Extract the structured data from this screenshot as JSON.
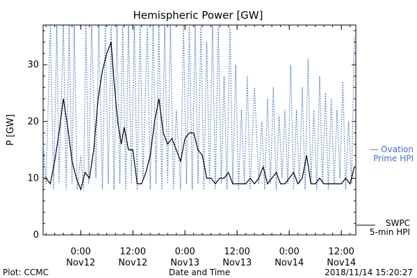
{
  "chart_data": {
    "type": "line",
    "title": "Hemispheric Power [GW]",
    "xlabel": "Date and Time",
    "ylabel": "P [GW]",
    "ylim": [
      0,
      37
    ],
    "xlim": [
      "2018-11-11T15:20",
      "2018-11-14T15:20"
    ],
    "yticks": [
      0,
      10,
      20,
      30
    ],
    "xticks": [
      {
        "time": "2018-11-12T00:00",
        "label1": "0:00",
        "label2": "Nov12"
      },
      {
        "time": "2018-11-12T12:00",
        "label1": "12:00",
        "label2": "Nov12"
      },
      {
        "time": "2018-11-13T00:00",
        "label1": "0:00",
        "label2": "Nov13"
      },
      {
        "time": "2018-11-13T12:00",
        "label1": "12:00",
        "label2": "Nov13"
      },
      {
        "time": "2018-11-14T00:00",
        "label1": "0:00",
        "label2": "Nov14"
      },
      {
        "time": "2018-11-14T12:00",
        "label1": "12:00",
        "label2": "Nov14"
      }
    ],
    "grid": false,
    "series": [
      {
        "name": "Ovation Prime HPI",
        "style": "dotted",
        "color": "#3a6fd8",
        "x": [
          "2018-11-11T15:20",
          "2018-11-11T16:00",
          "2018-11-11T17:00",
          "2018-11-11T17:45",
          "2018-11-11T18:30",
          "2018-11-11T19:00",
          "2018-11-11T20:00",
          "2018-11-11T20:40",
          "2018-11-11T21:20",
          "2018-11-11T22:00",
          "2018-11-11T22:30",
          "2018-11-11T23:10",
          "2018-11-12T00:00",
          "2018-11-12T00:40",
          "2018-11-12T01:10",
          "2018-11-12T01:50",
          "2018-11-12T02:30",
          "2018-11-12T03:30",
          "2018-11-12T04:10",
          "2018-11-12T05:00",
          "2018-11-12T05:40",
          "2018-11-12T06:20",
          "2018-11-12T07:00",
          "2018-11-12T07:40",
          "2018-11-12T08:20",
          "2018-11-12T09:00",
          "2018-11-12T09:40",
          "2018-11-12T10:20",
          "2018-11-12T11:00",
          "2018-11-12T11:40",
          "2018-11-12T12:20",
          "2018-11-12T13:00",
          "2018-11-12T13:40",
          "2018-11-12T14:20",
          "2018-11-12T15:20",
          "2018-11-12T16:00",
          "2018-11-12T16:40",
          "2018-11-12T17:20",
          "2018-11-12T18:00",
          "2018-11-12T18:40",
          "2018-11-12T19:20",
          "2018-11-12T20:00",
          "2018-11-12T20:40",
          "2018-11-12T21:20",
          "2018-11-12T22:00",
          "2018-11-12T23:00",
          "2018-11-12T23:40",
          "2018-11-13T00:20",
          "2018-11-13T01:00",
          "2018-11-13T01:40",
          "2018-11-13T02:20",
          "2018-11-13T03:00",
          "2018-11-13T03:40",
          "2018-11-13T04:20",
          "2018-11-13T05:00",
          "2018-11-13T05:40",
          "2018-11-13T06:20",
          "2018-11-13T07:00",
          "2018-11-13T07:40",
          "2018-11-13T08:20",
          "2018-11-13T09:00",
          "2018-11-13T09:40",
          "2018-11-13T10:20",
          "2018-11-13T11:00",
          "2018-11-13T11:40",
          "2018-11-13T12:20",
          "2018-11-13T13:00",
          "2018-11-13T13:40",
          "2018-11-13T14:20",
          "2018-11-13T15:00",
          "2018-11-13T16:00",
          "2018-11-13T17:00",
          "2018-11-13T17:40",
          "2018-11-13T18:20",
          "2018-11-13T19:00",
          "2018-11-13T19:40",
          "2018-11-13T20:20",
          "2018-11-13T21:00",
          "2018-11-13T21:40",
          "2018-11-13T22:20",
          "2018-11-13T23:00",
          "2018-11-13T23:40",
          "2018-11-14T00:20",
          "2018-11-14T01:00",
          "2018-11-14T01:40",
          "2018-11-14T02:20",
          "2018-11-14T03:00",
          "2018-11-14T03:40",
          "2018-11-14T04:20",
          "2018-11-14T05:00",
          "2018-11-14T05:40",
          "2018-11-14T06:20",
          "2018-11-14T07:00",
          "2018-11-14T07:40",
          "2018-11-14T08:20",
          "2018-11-14T09:00",
          "2018-11-14T09:40",
          "2018-11-14T10:20",
          "2018-11-14T11:00",
          "2018-11-14T11:40",
          "2018-11-14T12:20",
          "2018-11-14T13:00",
          "2018-11-14T13:40",
          "2018-11-14T14:20",
          "2018-11-14T15:00"
        ],
        "y": [
          16,
          9,
          37,
          8,
          37,
          9,
          37,
          8,
          37,
          9,
          37,
          8,
          14,
          8,
          37,
          9,
          37,
          10,
          37,
          8,
          37,
          9,
          37,
          8,
          37,
          9,
          37,
          8,
          37,
          9,
          37,
          8,
          37,
          10,
          37,
          8,
          37,
          9,
          37,
          8,
          37,
          9,
          37,
          8,
          22,
          8,
          37,
          9,
          37,
          8,
          37,
          9,
          37,
          8,
          34,
          9,
          37,
          8,
          37,
          9,
          28,
          8,
          37,
          9,
          30,
          8,
          22,
          9,
          28,
          8,
          26,
          9,
          20,
          8,
          24,
          9,
          26,
          8,
          21,
          10,
          22,
          9,
          30,
          8,
          22,
          9,
          26,
          8,
          31,
          9,
          22,
          8,
          28,
          9,
          25,
          8,
          24,
          9,
          22,
          10,
          27,
          8,
          20,
          9,
          35
        ]
      },
      {
        "name": "SWPC 5-min HPI",
        "style": "solid",
        "color": "#000000",
        "x": [
          "2018-11-11T15:20",
          "2018-11-11T16:00",
          "2018-11-11T17:00",
          "2018-11-11T18:00",
          "2018-11-11T19:00",
          "2018-11-11T20:00",
          "2018-11-11T21:00",
          "2018-11-11T22:00",
          "2018-11-11T23:00",
          "2018-11-12T00:00",
          "2018-11-12T01:00",
          "2018-11-12T02:00",
          "2018-11-12T03:00",
          "2018-11-12T04:00",
          "2018-11-12T05:00",
          "2018-11-12T06:00",
          "2018-11-12T07:00",
          "2018-11-12T07:40",
          "2018-11-12T08:30",
          "2018-11-12T09:20",
          "2018-11-12T10:00",
          "2018-11-12T11:00",
          "2018-11-12T12:00",
          "2018-11-12T13:00",
          "2018-11-12T14:00",
          "2018-11-12T15:00",
          "2018-11-12T16:00",
          "2018-11-12T17:00",
          "2018-11-12T18:00",
          "2018-11-12T19:00",
          "2018-11-12T20:00",
          "2018-11-12T21:00",
          "2018-11-12T22:00",
          "2018-11-12T23:00",
          "2018-11-13T00:00",
          "2018-11-13T01:00",
          "2018-11-13T02:00",
          "2018-11-13T03:00",
          "2018-11-13T04:00",
          "2018-11-13T05:00",
          "2018-11-13T06:00",
          "2018-11-13T07:00",
          "2018-11-13T08:00",
          "2018-11-13T09:00",
          "2018-11-13T10:00",
          "2018-11-13T11:00",
          "2018-11-13T12:00",
          "2018-11-13T13:00",
          "2018-11-13T14:00",
          "2018-11-13T15:00",
          "2018-11-13T16:00",
          "2018-11-13T17:00",
          "2018-11-13T18:00",
          "2018-11-13T19:00",
          "2018-11-13T20:00",
          "2018-11-13T21:00",
          "2018-11-13T22:00",
          "2018-11-13T23:00",
          "2018-11-14T00:00",
          "2018-11-14T01:00",
          "2018-11-14T02:00",
          "2018-11-14T03:00",
          "2018-11-14T04:00",
          "2018-11-14T05:00",
          "2018-11-14T06:00",
          "2018-11-14T07:00",
          "2018-11-14T08:00",
          "2018-11-14T09:00",
          "2018-11-14T10:00",
          "2018-11-14T11:00",
          "2018-11-14T12:00",
          "2018-11-14T13:00",
          "2018-11-14T14:00",
          "2018-11-14T15:00"
        ],
        "y": [
          10,
          10,
          9,
          13,
          18,
          24,
          19,
          13,
          10,
          8,
          11,
          10,
          15,
          24,
          29,
          32,
          34,
          27,
          20,
          16,
          19,
          15,
          15,
          9,
          9,
          11,
          14,
          20,
          24,
          18,
          16,
          17,
          15,
          13,
          17,
          18,
          18,
          15,
          14,
          10,
          10,
          9,
          10,
          10,
          11,
          9,
          9,
          9,
          9,
          10,
          9,
          10,
          12,
          9,
          10,
          11,
          9,
          9,
          10,
          11,
          9,
          10,
          14,
          9,
          9,
          10,
          9,
          9,
          9,
          9,
          9,
          10,
          9,
          12
        ]
      }
    ],
    "legend": {
      "position": "right",
      "entries": [
        {
          "line1": "— Ovation",
          "line2": "Prime HPI"
        },
        {
          "line1": "SWPC",
          "line2": "5-min HPI"
        }
      ]
    },
    "footer": {
      "left": "Plot: CCMC",
      "right": "2018/11/14 15:20:27"
    }
  }
}
